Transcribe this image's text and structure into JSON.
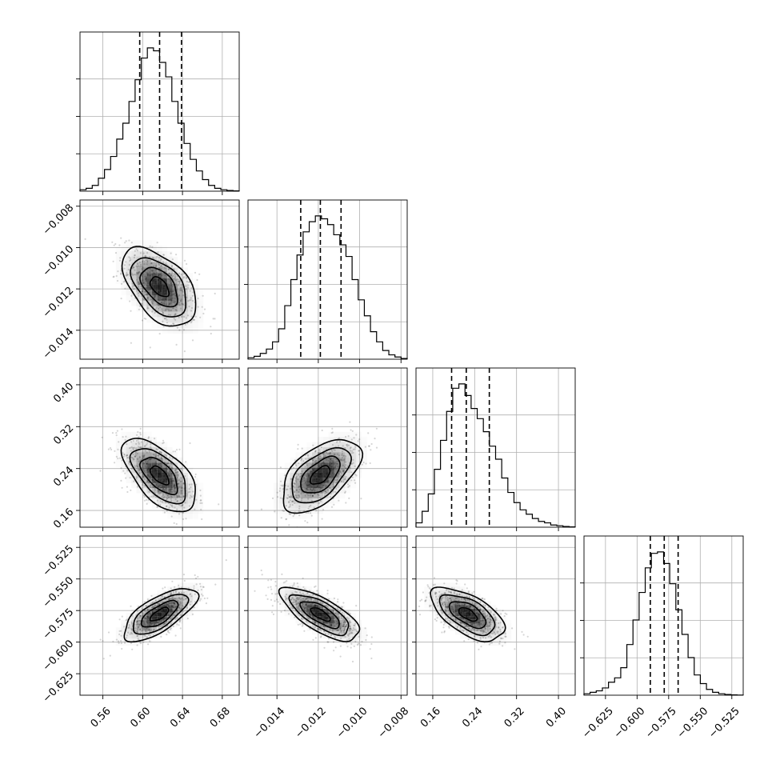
{
  "chart_data": {
    "type": "corner",
    "grid": true,
    "parameters": [
      {
        "ticks": [
          0.56,
          0.6,
          0.64,
          0.68
        ],
        "tick_labels": [
          "0.56",
          "0.60",
          "0.64",
          "0.68"
        ],
        "range": [
          0.537,
          0.697
        ],
        "mean": 0.617,
        "sd": 0.0185,
        "quantiles": [
          0.597,
          0.617,
          0.639
        ],
        "hist": [
          1,
          2,
          4,
          9,
          15,
          24,
          36,
          47,
          62,
          77,
          92,
          99,
          97,
          89,
          79,
          62,
          47,
          33,
          22,
          14,
          8,
          4,
          2,
          1,
          0.5,
          0.2
        ]
      },
      {
        "ticks": [
          -0.014,
          -0.012,
          -0.01,
          -0.008
        ],
        "tick_labels": [
          "−0.014",
          "−0.012",
          "−0.010",
          "−0.008"
        ],
        "range": [
          -0.0154,
          -0.0077
        ],
        "mean": -0.0119,
        "sd": 0.00095,
        "quantiles": [
          -0.01285,
          -0.0119,
          -0.0109
        ],
        "hist": [
          1,
          2,
          4,
          7,
          12,
          21,
          37,
          55,
          72,
          88,
          95,
          99,
          97,
          93,
          86,
          79,
          71,
          55,
          41,
          30,
          19,
          12,
          6,
          3,
          1.5,
          0.5
        ]
      },
      {
        "ticks": [
          0.16,
          0.24,
          0.32,
          0.4
        ],
        "tick_labels": [
          "0.16",
          "0.24",
          "0.32",
          "0.40"
        ],
        "range": [
          0.128,
          0.432
        ],
        "mean": 0.227,
        "sd": 0.035,
        "quantiles": [
          0.196,
          0.224,
          0.268
        ],
        "hist": [
          3,
          11,
          23,
          40,
          60,
          80,
          96,
          99,
          91,
          82,
          75,
          66,
          56,
          47,
          34,
          24,
          17,
          12,
          9,
          6,
          4,
          3,
          1.5,
          1,
          0.5,
          0.2
        ]
      },
      {
        "ticks": [
          -0.625,
          -0.6,
          -0.575,
          -0.55,
          -0.525
        ],
        "tick_labels": [
          "−0.625",
          "−0.600",
          "−0.575",
          "−0.550",
          "−0.525"
        ],
        "range": [
          -0.642,
          -0.516
        ],
        "mean": -0.578,
        "sd": 0.0105,
        "quantiles": [
          -0.5895,
          -0.5785,
          -0.5675
        ],
        "hist": [
          1,
          2,
          3,
          5,
          9,
          12,
          19,
          35,
          52,
          71,
          88,
          98,
          99,
          91,
          77,
          59,
          42,
          26,
          14,
          8,
          4,
          2,
          1,
          0.5,
          0.2,
          0.1
        ]
      }
    ],
    "correlations": [
      {
        "row": 1,
        "col": 0,
        "r": -0.5
      },
      {
        "row": 2,
        "col": 0,
        "r": -0.6
      },
      {
        "row": 2,
        "col": 1,
        "r": 0.55
      },
      {
        "row": 3,
        "col": 0,
        "r": 0.7
      },
      {
        "row": 3,
        "col": 1,
        "r": -0.72
      },
      {
        "row": 3,
        "col": 2,
        "r": -0.6
      }
    ]
  }
}
